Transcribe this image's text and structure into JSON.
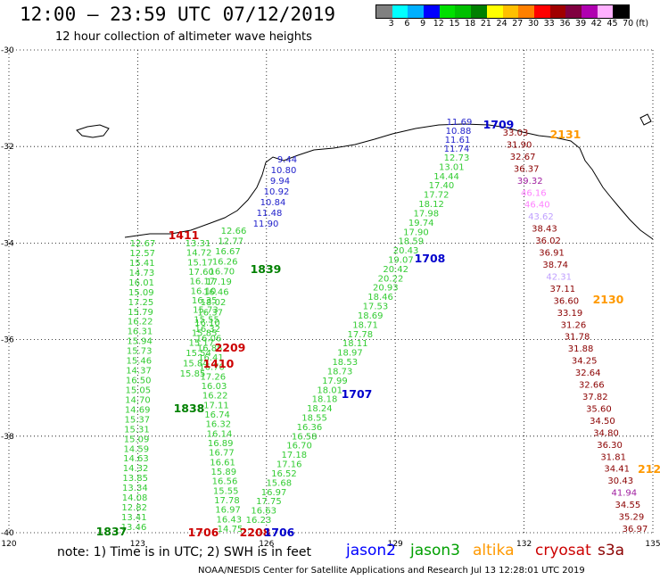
{
  "header": {
    "title": "12:00 – 23:59 UTC 07/12/2019",
    "subtitle": "12 hour collection of altimeter wave heights"
  },
  "colorbar": {
    "colors": [
      "#808080",
      "#00ffff",
      "#00b0ff",
      "#0000ff",
      "#00e000",
      "#00c000",
      "#008000",
      "#ffff00",
      "#ffc000",
      "#ff8000",
      "#ff0000",
      "#a00000",
      "#800040",
      "#b000b0",
      "#ffb0ff",
      "#000000"
    ],
    "labels": [
      "3",
      "6",
      "9",
      "12",
      "15",
      "18",
      "21",
      "24",
      "27",
      "30",
      "33",
      "36",
      "39",
      "42",
      "45",
      "70",
      "(ft)"
    ]
  },
  "map": {
    "lat_labels": [
      "-30",
      "-32",
      "-34",
      "-36",
      "-38",
      "-40"
    ],
    "lon_labels": [
      "120",
      "123",
      "126",
      "129",
      "132",
      "135"
    ],
    "tracks": [
      {
        "color": "#33cc33",
        "labels": [
          "13.46",
          "13.41",
          "12.82",
          "14.08",
          "13.34",
          "13.85",
          "14.32",
          "14.63",
          "14.59",
          "15.09",
          "15.31",
          "15.37",
          "14.69",
          "14.70",
          "15.05",
          "16.50",
          "14.37",
          "15.46",
          "15.73",
          "15.94",
          "16.31",
          "16.22",
          "15.79",
          "17.25",
          "15.09",
          "16.01",
          "14.73",
          "15.41",
          "12.57",
          "12.67"
        ]
      },
      {
        "color": "#33cc33",
        "labels": [
          "14.75",
          "16.43",
          "16.97",
          "17.78",
          "15.55",
          "16.56",
          "15.89",
          "16.61",
          "16.77",
          "16.89",
          "16.14",
          "16.32",
          "16.74",
          "17.11",
          "16.22",
          "16.03",
          "17.26",
          "16.70",
          "16.41",
          "16.85",
          "16.06",
          "16.32",
          "15.55",
          "15.73",
          "16.35",
          "16.10",
          "16.17",
          "17.60",
          "15.17",
          "14.72",
          "13.31"
        ]
      },
      {
        "color": "#33cc33",
        "labels": [
          "16.23",
          "16.63",
          "17.75",
          "16.97",
          "15.68",
          "16.52",
          "17.16",
          "17.18",
          "16.70",
          "16.58",
          "16.36",
          "18.55",
          "18.24",
          "18.18",
          "18.01",
          "17.99",
          "18.73",
          "18.53",
          "18.97",
          "18.11",
          "17.78",
          "18.71",
          "18.69",
          "17.53",
          "18.46",
          "20.93",
          "20.22",
          "20.42",
          "19.07",
          "20.43",
          "18.59",
          "17.90",
          "19.74",
          "17.98",
          "18.12",
          "17.72",
          "17.40",
          "14.44",
          "13.01",
          "12.73"
        ]
      },
      {
        "color": "#2222cc",
        "labels": [
          "11.69",
          "10.88",
          "11.61",
          "11.74"
        ]
      },
      {
        "color": "#2222cc",
        "labels": [
          "9.44",
          "10.80",
          "9.94",
          "10.92",
          "10.84",
          "11.48",
          "11.90"
        ]
      },
      {
        "color": "#33cc33",
        "labels": [
          "12.66",
          "12.77",
          "16.67",
          "16.26",
          "16.70",
          "17.19",
          "16.46",
          "18.02",
          "16.37",
          "16.10",
          "15.85",
          "15.17",
          "15.54",
          "15.84",
          "15.85"
        ]
      },
      {
        "color": "#c00000",
        "labels": [
          "33.03",
          "31.90",
          "32.67",
          "36.37",
          "39.32",
          "46.16",
          "46.40",
          "43.62",
          "38.43",
          "36.02",
          "36.91",
          "38.74",
          "42.31",
          "37.11",
          "36.60",
          "33.19",
          "31.26",
          "31.78",
          "31.88",
          "34.25",
          "32.64",
          "32.66",
          "37.82",
          "35.60",
          "34.50",
          "34.80",
          "36.30",
          "31.81",
          "34.41",
          "30.43",
          "41.94",
          "34.55",
          "35.29",
          "36.97"
        ]
      }
    ],
    "track_colors_by_value": {
      "dark_red": "#8b0000",
      "violet": "#a020a0",
      "pink": "#ff80ff",
      "lavender": "#c0a0ff"
    },
    "time_tags": [
      {
        "text": "1709",
        "color": "#0000cc"
      },
      {
        "text": "2131",
        "color": "#ff9900"
      },
      {
        "text": "1411",
        "color": "#cc0000"
      },
      {
        "text": "1839",
        "color": "#008000"
      },
      {
        "text": "1708",
        "color": "#0000cc"
      },
      {
        "text": "2130",
        "color": "#ff9900"
      },
      {
        "text": "2209",
        "color": "#cc0000"
      },
      {
        "text": "1410",
        "color": "#cc0000"
      },
      {
        "text": "1707",
        "color": "#0000cc"
      },
      {
        "text": "1838",
        "color": "#008000"
      },
      {
        "text": "212",
        "color": "#ff9900"
      },
      {
        "text": "1837",
        "color": "#008000"
      },
      {
        "text": "2208",
        "color": "#cc0000"
      },
      {
        "text": "1706",
        "color": "#0000cc"
      },
      {
        "text": "1706",
        "color": "#cc0000"
      }
    ]
  },
  "legend": {
    "note": "note:  1) Time is in UTC;  2) SWH is in feet",
    "satellites": [
      {
        "name": "jason2",
        "color": "#0000ff"
      },
      {
        "name": "jason3",
        "color": "#00a000"
      },
      {
        "name": "altika",
        "color": "#ff9900"
      },
      {
        "name": "cryosat",
        "color": "#cc0000"
      },
      {
        "name": "s3a",
        "color": "#8b0000"
      }
    ]
  },
  "footer": {
    "credit": "NOAA/NESDIS Center for Satellite Applications and Research",
    "timestamp": "Jul 13 12:28:01 UTC 2019"
  }
}
